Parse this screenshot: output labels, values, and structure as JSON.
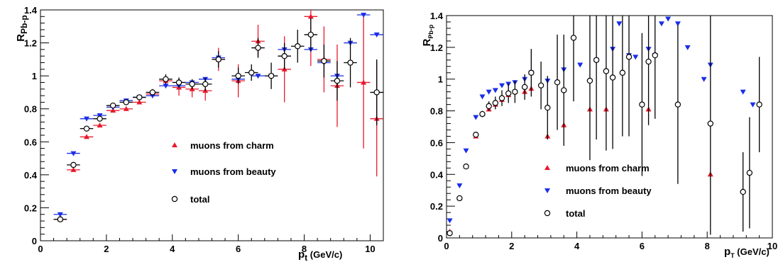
{
  "chart_data": [
    {
      "type": "scatter",
      "panel": "left",
      "xlabel_main": "p",
      "xlabel_sub": "t",
      "xlabel_unit": "(GeV/c)",
      "ylabel_main": "R",
      "ylabel_sub": "Pb-p",
      "xlim": [
        0,
        10.4
      ],
      "ylim": [
        0,
        1.4
      ],
      "xticks": [
        "0",
        "2",
        "4",
        "6",
        "8",
        "10"
      ],
      "yticks": [
        "0",
        "0.2",
        "0.4",
        "0.6",
        "0.8",
        "1",
        "1.2",
        "1.4"
      ],
      "legend": [
        "muons from charm",
        "muons from beauty",
        "total"
      ],
      "colors": {
        "charm": "#e8192c",
        "beauty": "#1a2ee8",
        "total": "#000000"
      },
      "series": [
        {
          "name": "muons from charm",
          "marker": "triangle-up",
          "points": [
            [
              0.6,
              0.13,
              0.2,
              0
            ],
            [
              1.0,
              0.43,
              0.2,
              0
            ],
            [
              1.4,
              0.63,
              0.2,
              0
            ],
            [
              1.8,
              0.7,
              0.2,
              0
            ],
            [
              2.2,
              0.79,
              0.2,
              0
            ],
            [
              2.6,
              0.8,
              0.2,
              0
            ],
            [
              3.0,
              0.84,
              0.2,
              0
            ],
            [
              3.4,
              0.89,
              0.2,
              0
            ],
            [
              3.8,
              0.97,
              0.2,
              0.02
            ],
            [
              4.2,
              0.93,
              0.2,
              0.05
            ],
            [
              4.6,
              0.92,
              0.2,
              0.05
            ],
            [
              5.0,
              0.91,
              0.2,
              0.06
            ],
            [
              5.4,
              1.1,
              0.2,
              0.07
            ],
            [
              6.0,
              0.97,
              0.2,
              0.1
            ],
            [
              6.6,
              1.21,
              0.2,
              0.1
            ],
            [
              7.4,
              1.04,
              0.2,
              0.2
            ],
            [
              8.2,
              1.36,
              0.2,
              0.3
            ],
            [
              8.6,
              1.1,
              0.2,
              0.2
            ],
            [
              9.0,
              0.94,
              0.2,
              0.25
            ],
            [
              9.8,
              0.96,
              0.2,
              0.4
            ],
            [
              10.2,
              0.74,
              0.2,
              0.35
            ]
          ]
        },
        {
          "name": "muons from beauty",
          "marker": "triangle-down",
          "points": [
            [
              0.6,
              0.16,
              0.2,
              0
            ],
            [
              1.0,
              0.53,
              0.2,
              0
            ],
            [
              1.4,
              0.74,
              0.2,
              0
            ],
            [
              1.8,
              0.76,
              0.2,
              0
            ],
            [
              2.2,
              0.81,
              0.2,
              0
            ],
            [
              2.6,
              0.85,
              0.2,
              0
            ],
            [
              3.0,
              0.87,
              0.2,
              0
            ],
            [
              3.4,
              0.88,
              0.2,
              0
            ],
            [
              3.8,
              0.94,
              0.2,
              0
            ],
            [
              4.2,
              0.94,
              0.2,
              0
            ],
            [
              4.6,
              0.96,
              0.2,
              0
            ],
            [
              5.0,
              0.98,
              0.2,
              0
            ],
            [
              5.4,
              1.11,
              0.2,
              0
            ],
            [
              6.0,
              0.98,
              0.2,
              0
            ],
            [
              6.6,
              1.0,
              0.2,
              0
            ],
            [
              7.0,
              1.0,
              0.2,
              0
            ],
            [
              7.4,
              1.16,
              0.2,
              0
            ],
            [
              8.2,
              1.16,
              0.2,
              0
            ],
            [
              8.6,
              1.08,
              0.2,
              0
            ],
            [
              9.0,
              1.0,
              0.2,
              0
            ],
            [
              9.4,
              1.2,
              0.2,
              0
            ],
            [
              9.8,
              1.37,
              0.2,
              0
            ],
            [
              10.2,
              1.25,
              0.2,
              0
            ]
          ]
        },
        {
          "name": "total",
          "marker": "circle-open",
          "points": [
            [
              0.6,
              0.13,
              0.2,
              0
            ],
            [
              1.0,
              0.46,
              0.2,
              0
            ],
            [
              1.4,
              0.68,
              0.2,
              0
            ],
            [
              1.8,
              0.74,
              0.2,
              0
            ],
            [
              2.2,
              0.82,
              0.2,
              0
            ],
            [
              2.6,
              0.84,
              0.2,
              0
            ],
            [
              3.0,
              0.87,
              0.2,
              0
            ],
            [
              3.4,
              0.9,
              0.2,
              0.02
            ],
            [
              3.8,
              0.98,
              0.2,
              0.03
            ],
            [
              4.2,
              0.96,
              0.2,
              0.03
            ],
            [
              4.6,
              0.95,
              0.2,
              0.03
            ],
            [
              5.0,
              0.95,
              0.2,
              0.04
            ],
            [
              5.4,
              1.1,
              0.2,
              0.05
            ],
            [
              6.0,
              1.0,
              0.2,
              0.05
            ],
            [
              6.4,
              1.02,
              0.2,
              0.05
            ],
            [
              6.6,
              1.17,
              0.2,
              0.06
            ],
            [
              7.0,
              1.0,
              0.2,
              0.08
            ],
            [
              7.4,
              1.12,
              0.2,
              0.08
            ],
            [
              7.8,
              1.18,
              0.2,
              0.1
            ],
            [
              8.2,
              1.25,
              0.2,
              0.1
            ],
            [
              8.6,
              1.09,
              0.2,
              0.1
            ],
            [
              9.0,
              0.97,
              0.2,
              0.12
            ],
            [
              9.4,
              1.08,
              0.2,
              0.15
            ],
            [
              10.2,
              0.9,
              0.2,
              0.2
            ]
          ]
        }
      ]
    },
    {
      "type": "scatter",
      "panel": "right",
      "xlabel_main": "p",
      "xlabel_sub": "T",
      "xlabel_unit": "(GeV/c)",
      "ylabel_main": "R",
      "ylabel_sub": "Pb-p",
      "xlim": [
        0,
        10
      ],
      "ylim": [
        0,
        1.4
      ],
      "xticks": [
        "0",
        "2",
        "4",
        "6",
        "8",
        "10"
      ],
      "yticks": [
        "0",
        "0.2",
        "0.4",
        "0.6",
        "0.8",
        "1",
        "1.2",
        "1.4"
      ],
      "legend": [
        "muons from charm",
        "muons from beauty",
        "total"
      ],
      "colors": {
        "charm": "#e8192c",
        "beauty": "#1a2ee8",
        "total": "#000000"
      },
      "series": [
        {
          "name": "muons from charm",
          "marker": "triangle-up",
          "points": [
            [
              0.1,
              0.04,
              0.05,
              0
            ],
            [
              0.4,
              0.25,
              0.05,
              0
            ],
            [
              0.6,
              0.45,
              0.05,
              0
            ],
            [
              0.9,
              0.64,
              0.05,
              0
            ],
            [
              1.1,
              0.78,
              0.05,
              0
            ],
            [
              1.3,
              0.81,
              0.05,
              0
            ],
            [
              1.5,
              0.84,
              0.05,
              0
            ],
            [
              1.7,
              0.87,
              0.05,
              0
            ],
            [
              1.9,
              0.9,
              0.05,
              0
            ],
            [
              2.1,
              0.92,
              0.05,
              0
            ],
            [
              2.4,
              0.92,
              0.05,
              0
            ],
            [
              2.6,
              0.94,
              0.05,
              0
            ],
            [
              3.1,
              0.64,
              0.05,
              0
            ],
            [
              3.6,
              0.71,
              0.05,
              0
            ],
            [
              4.4,
              0.81,
              0.05,
              0
            ],
            [
              4.9,
              0.81,
              0.05,
              0
            ],
            [
              6.2,
              0.81,
              0.05,
              0
            ],
            [
              8.1,
              0.4,
              0.05,
              0
            ]
          ]
        },
        {
          "name": "muons from beauty",
          "marker": "triangle-down",
          "points": [
            [
              0.1,
              0.11,
              0.05,
              0
            ],
            [
              0.4,
              0.33,
              0.05,
              0
            ],
            [
              0.6,
              0.55,
              0.05,
              0
            ],
            [
              0.9,
              0.76,
              0.05,
              0
            ],
            [
              1.1,
              0.89,
              0.05,
              0
            ],
            [
              1.3,
              0.92,
              0.05,
              0
            ],
            [
              1.5,
              0.93,
              0.05,
              0
            ],
            [
              1.7,
              0.96,
              0.05,
              0
            ],
            [
              1.9,
              0.97,
              0.05,
              0
            ],
            [
              2.1,
              0.98,
              0.05,
              0
            ],
            [
              2.4,
              1.0,
              0.05,
              0
            ],
            [
              2.6,
              1.04,
              0.05,
              0
            ],
            [
              3.1,
              0.99,
              0.05,
              0
            ],
            [
              3.6,
              1.06,
              0.05,
              0
            ],
            [
              4.1,
              1.09,
              0.05,
              0
            ],
            [
              4.6,
              1.12,
              0.05,
              0
            ],
            [
              5.1,
              1.19,
              0.05,
              0
            ],
            [
              5.3,
              1.35,
              0.05,
              0
            ],
            [
              5.6,
              1.15,
              0.05,
              0
            ],
            [
              5.8,
              1.14,
              0.05,
              0
            ],
            [
              6.2,
              1.19,
              0.05,
              0
            ],
            [
              6.4,
              1.15,
              0.05,
              0
            ],
            [
              6.6,
              1.35,
              0.05,
              0
            ],
            [
              6.8,
              1.38,
              0.05,
              0
            ],
            [
              7.1,
              1.35,
              0.05,
              0
            ],
            [
              7.4,
              1.2,
              0.05,
              0
            ],
            [
              7.9,
              1.0,
              0.05,
              0
            ],
            [
              8.1,
              1.09,
              0.05,
              0
            ],
            [
              9.1,
              0.92,
              0.05,
              0
            ],
            [
              9.4,
              0.84,
              0.05,
              0
            ]
          ]
        },
        {
          "name": "total",
          "marker": "circle-open",
          "points": [
            [
              0.1,
              0.03,
              0.05,
              0.01
            ],
            [
              0.4,
              0.25,
              0.05,
              0.01
            ],
            [
              0.6,
              0.45,
              0.05,
              0.01
            ],
            [
              0.9,
              0.65,
              0.05,
              0.01
            ],
            [
              1.1,
              0.78,
              0.05,
              0.02
            ],
            [
              1.3,
              0.83,
              0.05,
              0.03
            ],
            [
              1.5,
              0.85,
              0.05,
              0.04
            ],
            [
              1.7,
              0.88,
              0.05,
              0.05
            ],
            [
              1.9,
              0.91,
              0.05,
              0.06
            ],
            [
              2.1,
              0.92,
              0.05,
              0.07
            ],
            [
              2.4,
              0.95,
              0.05,
              0.08
            ],
            [
              2.6,
              1.04,
              0.05,
              0.15
            ],
            [
              2.9,
              0.96,
              0.05,
              0.15
            ],
            [
              3.1,
              0.82,
              0.05,
              0.2
            ],
            [
              3.4,
              0.98,
              0.05,
              0.3
            ],
            [
              3.6,
              0.93,
              0.05,
              0.35
            ],
            [
              3.9,
              1.26,
              0.05,
              0.4
            ],
            [
              4.4,
              0.99,
              0.05,
              0.5
            ],
            [
              4.6,
              1.12,
              0.05,
              0.5
            ],
            [
              4.9,
              1.05,
              0.05,
              0.5
            ],
            [
              5.1,
              1.01,
              0.05,
              0.45
            ],
            [
              5.4,
              1.04,
              0.05,
              0.4
            ],
            [
              5.6,
              1.14,
              0.05,
              0.5
            ],
            [
              6.0,
              0.84,
              0.05,
              0.45
            ],
            [
              6.2,
              1.11,
              0.05,
              0.4
            ],
            [
              6.4,
              1.15,
              0.05,
              0.4
            ],
            [
              7.1,
              0.84,
              0.05,
              0.5
            ],
            [
              8.1,
              0.72,
              0.05,
              0.7
            ],
            [
              9.1,
              0.29,
              0.05,
              0.25
            ],
            [
              9.3,
              0.41,
              0.05,
              0.35
            ],
            [
              9.6,
              0.84,
              0.05,
              0.3
            ]
          ]
        }
      ]
    }
  ]
}
